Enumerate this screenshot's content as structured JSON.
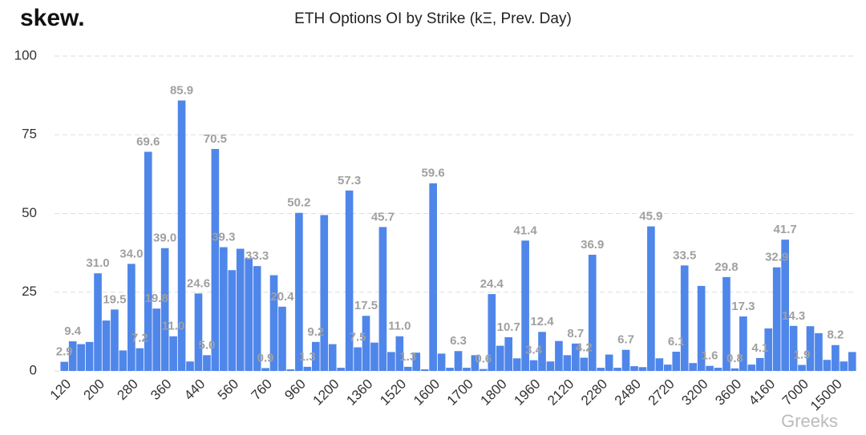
{
  "chart_data": {
    "type": "bar",
    "brand": "skew.",
    "title": "ETH Options OI by Strike (kΞ, Prev. Day)",
    "watermark": "Greeks",
    "color": "#4f86ea",
    "grid": true,
    "ylim": [
      0,
      100
    ],
    "yticks": [
      0,
      25,
      50,
      75,
      100
    ],
    "categories": [
      "120",
      null,
      null,
      null,
      "200",
      null,
      null,
      null,
      "280",
      null,
      null,
      null,
      "360",
      null,
      null,
      null,
      "440",
      null,
      null,
      null,
      "560",
      null,
      null,
      null,
      "760",
      null,
      null,
      null,
      "960",
      null,
      null,
      null,
      "1200",
      null,
      null,
      null,
      "1360",
      null,
      null,
      null,
      "1520",
      null,
      null,
      null,
      "1600",
      null,
      null,
      null,
      "1700",
      null,
      null,
      null,
      "1800",
      null,
      null,
      null,
      "1960",
      null,
      null,
      null,
      "2120",
      null,
      null,
      null,
      "2280",
      null,
      null,
      null,
      "2480",
      null,
      null,
      null,
      "2720",
      null,
      null,
      null,
      "3200",
      null,
      null,
      null,
      "3600",
      null,
      null,
      null,
      "4160",
      null,
      null,
      null,
      "7000",
      null,
      null,
      null,
      "15000",
      null,
      null
    ],
    "values": [
      2.9,
      9.4,
      8.5,
      9.2,
      31.0,
      16.0,
      19.5,
      6.5,
      34.0,
      7.2,
      69.6,
      19.8,
      39.0,
      11.0,
      85.9,
      3.0,
      24.6,
      5.0,
      70.5,
      39.3,
      32.0,
      38.8,
      35.8,
      33.3,
      0.9,
      30.4,
      20.4,
      0.5,
      50.2,
      1.3,
      9.2,
      49.5,
      8.5,
      1.0,
      57.3,
      7.5,
      17.5,
      9.0,
      45.7,
      6.0,
      11.0,
      1.3,
      5.8,
      0.5,
      59.6,
      5.5,
      1.0,
      6.3,
      1.0,
      5.0,
      0.6,
      24.4,
      8.0,
      10.7,
      4.0,
      41.4,
      3.4,
      12.4,
      3.0,
      9.5,
      5.0,
      8.7,
      4.2,
      36.9,
      1.0,
      5.2,
      1.0,
      6.7,
      1.5,
      1.2,
      45.9,
      4.0,
      2.0,
      6.1,
      33.5,
      2.5,
      27.0,
      1.6,
      1.0,
      29.8,
      0.8,
      17.3,
      2.0,
      4.1,
      13.5,
      32.9,
      41.7,
      14.3,
      1.9,
      14.2,
      12.0,
      3.5,
      8.2,
      3.0,
      6.0
    ],
    "value_labels": [
      "2.9",
      "9.4",
      null,
      null,
      "31.0",
      null,
      "19.5",
      null,
      "34.0",
      "7.2",
      "69.6",
      "19.8",
      "39.0",
      "11.0",
      "85.9",
      null,
      "24.6",
      "5.0",
      "70.5",
      "39.3",
      null,
      null,
      null,
      "33.3",
      "0.9",
      null,
      "20.4",
      null,
      "50.2",
      "1.3",
      "9.2",
      null,
      null,
      null,
      "57.3",
      "7.5",
      "17.5",
      null,
      "45.7",
      null,
      "11.0",
      "1.3",
      null,
      null,
      "59.6",
      null,
      null,
      "6.3",
      null,
      null,
      "0.6",
      "24.4",
      null,
      "10.7",
      null,
      "41.4",
      "3.4",
      "12.4",
      null,
      null,
      null,
      "8.7",
      "4.2",
      "36.9",
      null,
      null,
      null,
      "6.7",
      null,
      null,
      "45.9",
      null,
      null,
      "6.1",
      "33.5",
      null,
      null,
      "1.6",
      null,
      "29.8",
      "0.8",
      "17.3",
      null,
      "4.1",
      null,
      "32.9",
      "41.7",
      "14.3",
      "1.9",
      null,
      null,
      null,
      "8.2",
      null,
      null
    ]
  }
}
